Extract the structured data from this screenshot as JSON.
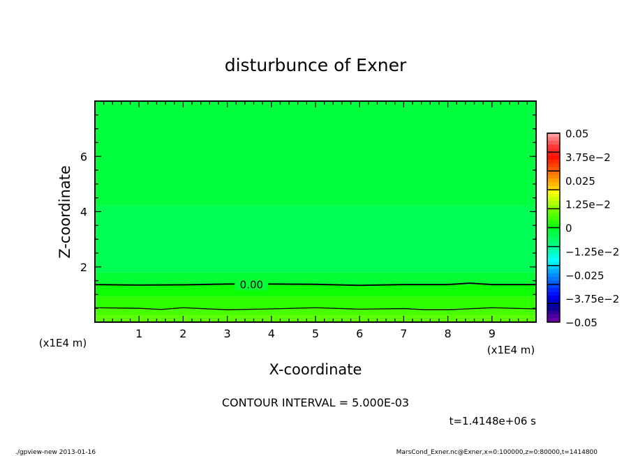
{
  "chart_data": {
    "type": "contour",
    "title": "disturbunce of Exner",
    "xlabel": "X-coordinate",
    "ylabel": "Z-coordinate",
    "x_unit_label": "(x1E4 m)",
    "y_unit_label": "(x1E4 m)",
    "xlim": [
      0,
      10
    ],
    "ylim": [
      0,
      8
    ],
    "x_ticks": [
      1,
      2,
      3,
      4,
      5,
      6,
      7,
      8,
      9
    ],
    "y_ticks": [
      2,
      4,
      6
    ],
    "x_minor_step": 0.2,
    "y_minor_step": 0.5,
    "contour_interval_text": "CONTOUR INTERVAL = 5.000E-03",
    "time_text": "t=1.4148e+06 s",
    "contours": [
      {
        "value": 0.0,
        "label": "0.00",
        "x": [
          0,
          1,
          2,
          3,
          4,
          5,
          6,
          7,
          8,
          8.5,
          9,
          10
        ],
        "z": [
          1.36,
          1.34,
          1.35,
          1.38,
          1.38,
          1.37,
          1.33,
          1.36,
          1.36,
          1.41,
          1.36,
          1.36
        ]
      },
      {
        "value": 0.005,
        "label": "",
        "x": [
          0,
          1,
          1.5,
          2,
          3,
          4,
          5,
          6,
          7,
          7.5,
          8,
          9,
          10
        ],
        "z": [
          0.52,
          0.5,
          0.46,
          0.52,
          0.45,
          0.48,
          0.52,
          0.47,
          0.49,
          0.45,
          0.45,
          0.52,
          0.48
        ]
      }
    ],
    "fill_bands": [
      {
        "zmin": 4.2,
        "zmax": 8,
        "color": "#00ff3c"
      },
      {
        "zmin": 1.8,
        "zmax": 4.2,
        "color": "#00ff55"
      },
      {
        "zmin": 1.36,
        "zmax": 1.8,
        "color": "#00ff33"
      },
      {
        "zmin": 0.93,
        "zmax": 1.36,
        "color": "#0cff00"
      },
      {
        "zmin": 0.5,
        "zmax": 0.93,
        "color": "#2cff00"
      },
      {
        "zmin": 0.25,
        "zmax": 0.5,
        "color": "#48ff00"
      },
      {
        "zmin": 0,
        "zmax": 0.25,
        "color": "#5aff00"
      }
    ],
    "colorbar": {
      "range": [
        -0.05,
        0.05
      ],
      "labels": [
        "0.05",
        "3.75e-2",
        "0.025",
        "1.25e-2",
        "0",
        "-1.25e-2",
        "-0.025",
        "-3.75e-2",
        "-0.05"
      ],
      "segment_colors": [
        [
          "#ff9a9a",
          "#ff7a7a",
          "#ff5a5a",
          "#ff3a3a",
          "#ff2a2a"
        ],
        [
          "#ff1a10",
          "#ff1000",
          "#ff2a00",
          "#ff4000",
          "#ff5500"
        ],
        [
          "#ff7000",
          "#ff8a00",
          "#ffa000",
          "#ffb800",
          "#ffd000"
        ],
        [
          "#ffff00",
          "#e8ff00",
          "#ccff00",
          "#b0ff00",
          "#90ff00"
        ],
        [
          "#70ff00",
          "#58ff00",
          "#40ff00",
          "#28ff00",
          "#10ff00"
        ],
        [
          "#00ff30",
          "#00ff44",
          "#00ff58",
          "#00ff6c",
          "#00ff80"
        ],
        [
          "#00ffa0",
          "#00ffc0",
          "#00ffe0",
          "#00ffff",
          "#00f0ff"
        ],
        [
          "#00c8ff",
          "#00a8ff",
          "#0090ff",
          "#0078ff",
          "#0060ff"
        ],
        [
          "#0040ff",
          "#0028ff",
          "#0010ff",
          "#0000ee",
          "#0000d0"
        ],
        [
          "#0000a8",
          "#100098",
          "#300098",
          "#5000a0",
          "#6800a8"
        ]
      ]
    }
  },
  "footer": {
    "left": "./gpview-new  2013-01-16",
    "right": "MarsCond_Exner.nc@Exner,x=0:100000,z=0:80000,t=1414800"
  }
}
